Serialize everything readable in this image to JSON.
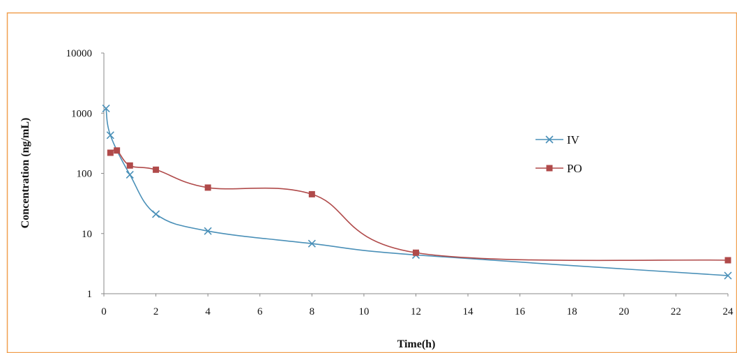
{
  "chart_data": {
    "type": "line",
    "title": "",
    "xlabel": "Time(h)",
    "ylabel": "Concentration (ng/mL)",
    "xlim": [
      0,
      24
    ],
    "ylim": [
      1,
      10000
    ],
    "y_scale": "log",
    "x_ticks": [
      0,
      2,
      4,
      6,
      8,
      10,
      12,
      14,
      16,
      18,
      20,
      22,
      24
    ],
    "y_ticks": [
      1,
      10,
      100,
      1000,
      10000
    ],
    "x_tick_labels": [
      "0",
      "2",
      "4",
      "6",
      "8",
      "10",
      "12",
      "14",
      "16",
      "18",
      "20",
      "22",
      "24"
    ],
    "y_tick_labels": [
      "1",
      "10",
      "100",
      "1000",
      "10000"
    ],
    "grid": false,
    "legend_position": "right",
    "series": [
      {
        "name": "IV",
        "color": "#4a90b8",
        "marker": "x",
        "x": [
          0.083,
          0.25,
          1,
          2,
          4,
          8,
          12,
          24
        ],
        "y": [
          1200,
          430,
          95,
          21,
          11,
          6.8,
          4.4,
          2.0
        ]
      },
      {
        "name": "PO",
        "color": "#b04a4a",
        "marker": "square",
        "x": [
          0.25,
          0.5,
          1,
          2,
          4,
          8,
          12,
          24
        ],
        "y": [
          220,
          240,
          135,
          115,
          58,
          45,
          4.8,
          3.6
        ]
      }
    ]
  },
  "colors": {
    "frame_border": "#f0a050",
    "axis": "#888888"
  }
}
